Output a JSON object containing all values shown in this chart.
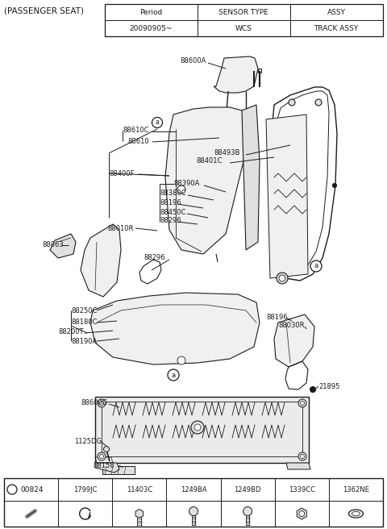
{
  "title": "(PASSENGER SEAT)",
  "bg_color": "#ffffff",
  "table_header": [
    "Period",
    "SENSOR TYPE",
    "ASSY"
  ],
  "table_row": [
    "20090905~",
    "WCS",
    "TRACK ASSY"
  ],
  "line_color": "#1a1a1a",
  "text_color": "#1a1a1a",
  "fill_light": "#f0f0f0",
  "fill_mid": "#e0e0e0",
  "fill_dark": "#cccccc"
}
